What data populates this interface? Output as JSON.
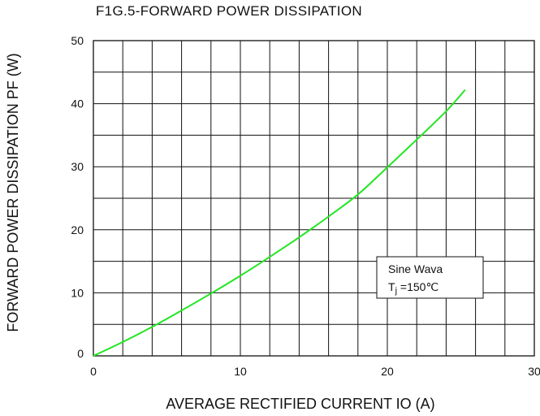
{
  "chart_data": {
    "type": "line",
    "title": "F1G.5-FORWARD POWER DISSIPATION",
    "xlabel": "AVERAGE RECTIFIED CURRENT IO (A)",
    "ylabel": "FORWARD POWER DISSIPATION PF (W)",
    "xlim": [
      0,
      30
    ],
    "ylim": [
      0,
      50
    ],
    "x_ticks": [
      0,
      10,
      20,
      30
    ],
    "y_ticks": [
      0,
      10,
      20,
      30,
      40,
      50
    ],
    "x_tick_labels": [
      "0",
      "10",
      "20",
      "30"
    ],
    "y_tick_labels": [
      "0",
      "10",
      "20",
      "30",
      "40",
      "50"
    ],
    "grid": true,
    "grid_x_step": 2,
    "grid_y_step": 5,
    "legend_placement": "right",
    "legend": {
      "line1": "Sine Wava",
      "line2_symbol": "T",
      "line2_subscript": "j",
      "line2_value": " =150℃"
    },
    "series": [
      {
        "name": "",
        "color": "#22e622",
        "x": [
          0,
          2,
          4,
          6,
          8,
          10,
          12,
          14,
          16,
          18,
          20,
          22,
          24,
          25.3
        ],
        "y": [
          0,
          2.2,
          4.6,
          7.2,
          9.9,
          12.7,
          15.7,
          18.8,
          22.1,
          25.6,
          29.9,
          34.3,
          38.8,
          42.2
        ]
      }
    ]
  }
}
